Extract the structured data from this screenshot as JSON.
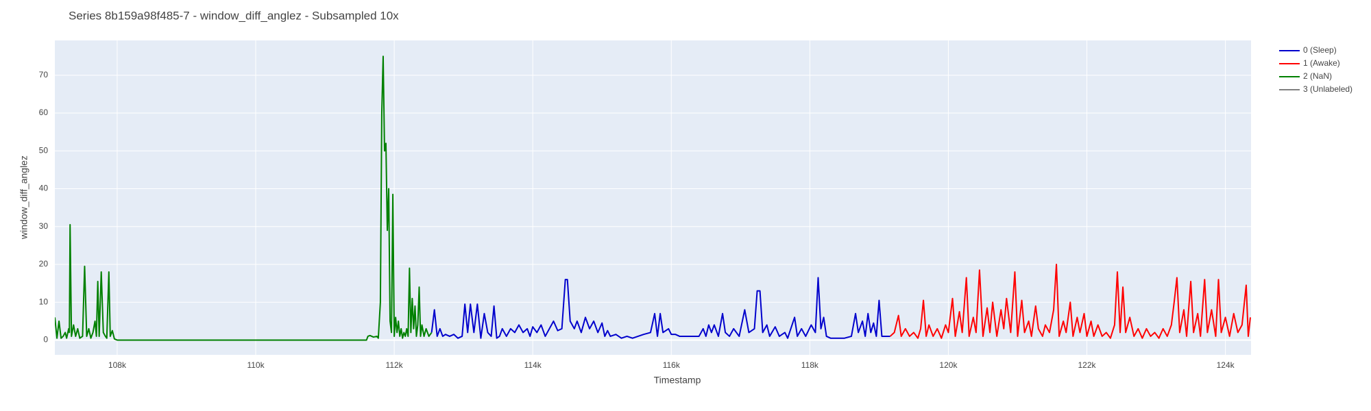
{
  "chart_data": {
    "type": "line",
    "title": "Series 8b159a98f485-7 - window_diff_anglez - Subsampled 10x",
    "x_label": "Timestamp",
    "y_label": "window_diff_anglez",
    "xlim": [
      107100,
      124370
    ],
    "ylim": [
      -3.9,
      79.2
    ],
    "xticks": [
      {
        "value": 108000,
        "label": "108k"
      },
      {
        "value": 110000,
        "label": "110k"
      },
      {
        "value": 112000,
        "label": "112k"
      },
      {
        "value": 114000,
        "label": "114k"
      },
      {
        "value": 116000,
        "label": "116k"
      },
      {
        "value": 118000,
        "label": "118k"
      },
      {
        "value": 120000,
        "label": "120k"
      },
      {
        "value": 122000,
        "label": "122k"
      },
      {
        "value": 124000,
        "label": "124k"
      }
    ],
    "yticks": [
      0,
      10,
      20,
      30,
      40,
      50,
      60,
      70
    ],
    "grid": true,
    "legend": "outside-right",
    "series": [
      {
        "name": "0 (Sleep)",
        "color": "#0000cc",
        "x": [
          112540,
          112580,
          112620,
          112660,
          112700,
          112740,
          112800,
          112860,
          112920,
          112980,
          113020,
          113060,
          113100,
          113150,
          113200,
          113250,
          113300,
          113350,
          113400,
          113440,
          113480,
          113520,
          113560,
          113620,
          113680,
          113740,
          113800,
          113860,
          113920,
          113960,
          114000,
          114060,
          114120,
          114180,
          114240,
          114300,
          114360,
          114420,
          114470,
          114500,
          114540,
          114600,
          114640,
          114700,
          114760,
          114820,
          114880,
          114940,
          115000,
          115040,
          115080,
          115120,
          115200,
          115280,
          115360,
          115440,
          115520,
          115600,
          115700,
          115760,
          115800,
          115840,
          115880,
          115960,
          116000,
          116060,
          116120,
          116200,
          116300,
          116400,
          116460,
          116500,
          116540,
          116580,
          116620,
          116680,
          116740,
          116780,
          116840,
          116900,
          116980,
          117060,
          117120,
          117200,
          117240,
          117280,
          117320,
          117380,
          117420,
          117500,
          117560,
          117640,
          117680,
          117780,
          117820,
          117880,
          117940,
          118020,
          118080,
          118120,
          118160,
          118200,
          118240,
          118300,
          118400,
          118500,
          118600,
          118660,
          118700,
          118760,
          118800,
          118840,
          118880,
          118920,
          118960,
          119000,
          119040,
          119100,
          119160
        ],
        "values": [
          2,
          8,
          1,
          3,
          1,
          1.5,
          1,
          1.5,
          0.5,
          1,
          9.5,
          2,
          9.5,
          2,
          9.5,
          0.5,
          7,
          2,
          1,
          9,
          0.5,
          1,
          3,
          1,
          3,
          2,
          4,
          2,
          3,
          1,
          3.5,
          2,
          4,
          1,
          3,
          5,
          2.5,
          3,
          16,
          16,
          5,
          3,
          5,
          2,
          6,
          3,
          5,
          2,
          4.5,
          1,
          2.5,
          1,
          1.5,
          0.5,
          1,
          0.5,
          1,
          1.5,
          2,
          7,
          1,
          7,
          2,
          3,
          1.5,
          1.5,
          1,
          1,
          1,
          1,
          3,
          1,
          4,
          2,
          4,
          1,
          7,
          2,
          1,
          3,
          1,
          8,
          2,
          3,
          13,
          13,
          2,
          4,
          1,
          3.5,
          1,
          2,
          0.5,
          6,
          1,
          3,
          1,
          4,
          2,
          16.5,
          3,
          6,
          1,
          0.5,
          0.5,
          0.5,
          1,
          7,
          2,
          5,
          1,
          7,
          2,
          4.5,
          1,
          10.5,
          1,
          1,
          1
        ]
      },
      {
        "name": "1 (Awake)",
        "color": "#ff0000",
        "x": [
          119160,
          119220,
          119280,
          119320,
          119380,
          119440,
          119500,
          119560,
          119600,
          119640,
          119680,
          119720,
          119780,
          119840,
          119900,
          119960,
          120000,
          120060,
          120100,
          120160,
          120200,
          120260,
          120300,
          120360,
          120400,
          120450,
          120500,
          120560,
          120600,
          120640,
          120700,
          120760,
          120800,
          120840,
          120900,
          120960,
          121000,
          121060,
          121100,
          121160,
          121200,
          121260,
          121300,
          121360,
          121400,
          121460,
          121520,
          121560,
          121600,
          121660,
          121700,
          121760,
          121800,
          121860,
          121900,
          121960,
          122000,
          122060,
          122100,
          122160,
          122220,
          122280,
          122340,
          122400,
          122440,
          122480,
          122520,
          122560,
          122620,
          122680,
          122740,
          122800,
          122860,
          122920,
          122980,
          123040,
          123100,
          123160,
          123220,
          123260,
          123300,
          123340,
          123400,
          123440,
          123500,
          123540,
          123600,
          123640,
          123700,
          123740,
          123800,
          123860,
          123900,
          123940,
          124000,
          124060,
          124120,
          124180,
          124240,
          124300,
          124330,
          124360
        ],
        "values": [
          1,
          2,
          6.5,
          1,
          3,
          1,
          2,
          0.5,
          3,
          10.5,
          1,
          4,
          1,
          3,
          0.5,
          4,
          2,
          11,
          1,
          7.5,
          2,
          16.5,
          1,
          6,
          2,
          18.5,
          1,
          8.5,
          2,
          10,
          1,
          8,
          3,
          11,
          2,
          18,
          1,
          10.5,
          2,
          5,
          1,
          9,
          3,
          1,
          4,
          2,
          8,
          20,
          1,
          5,
          2,
          10,
          1,
          6,
          2,
          7,
          1,
          5,
          1,
          4,
          1,
          2,
          0.5,
          4,
          18,
          2,
          14,
          2,
          6,
          1,
          3,
          0.5,
          3,
          1,
          2,
          0.5,
          3,
          1,
          4,
          10,
          16.5,
          2,
          8,
          1,
          15.5,
          2,
          7,
          1,
          16,
          2,
          8,
          1,
          16,
          2,
          6,
          1,
          7,
          2,
          4,
          14.5,
          1,
          6
        ]
      },
      {
        "name": "2 (NaN)",
        "color": "#008000",
        "x": [
          107100,
          107130,
          107160,
          107190,
          107220,
          107250,
          107270,
          107300,
          107310,
          107320,
          107340,
          107370,
          107400,
          107430,
          107460,
          107500,
          107530,
          107560,
          107590,
          107620,
          107650,
          107680,
          107700,
          107720,
          107740,
          107770,
          107800,
          107830,
          107850,
          107880,
          107900,
          107930,
          107960,
          108000,
          111600,
          111620,
          111650,
          111700,
          111750,
          111770,
          111800,
          111820,
          111840,
          111860,
          111880,
          111900,
          111920,
          111940,
          111960,
          111980,
          112000,
          112020,
          112040,
          112060,
          112080,
          112100,
          112120,
          112140,
          112160,
          112180,
          112200,
          112220,
          112240,
          112260,
          112280,
          112300,
          112320,
          112340,
          112360,
          112380,
          112400,
          112430,
          112460,
          112500,
          112540
        ],
        "values": [
          6,
          0.5,
          5,
          0.5,
          1,
          2,
          0.5,
          3,
          2,
          30.5,
          1,
          4,
          1,
          3,
          0.5,
          1,
          19.5,
          1,
          3,
          0.5,
          2,
          5,
          1,
          15.5,
          1,
          18,
          2,
          1,
          0.5,
          18,
          1,
          2.5,
          0.3,
          0,
          0,
          1,
          1.2,
          0.8,
          1,
          0.5,
          10,
          60,
          75,
          50,
          52,
          29,
          40,
          5,
          2,
          38.5,
          1,
          6,
          2,
          5,
          1,
          3,
          0.5,
          2,
          1,
          3,
          1,
          19,
          2,
          11,
          3,
          9,
          1,
          4,
          14,
          1,
          4,
          1,
          3,
          1,
          2
        ]
      },
      {
        "name": "3 (Unlabeled)",
        "color": "#808080",
        "x": [],
        "values": []
      }
    ]
  }
}
